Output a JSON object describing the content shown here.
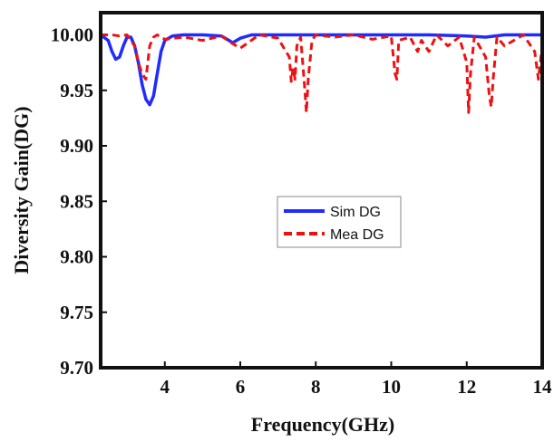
{
  "chart_data": {
    "type": "line",
    "xlabel": "Frequency(GHz)",
    "ylabel": "Diversity Gain(DG)",
    "xlim": [
      2.3,
      14.0
    ],
    "ylim": [
      9.7,
      10.02
    ],
    "xticks": [
      4,
      6,
      8,
      10,
      12,
      14
    ],
    "yticks": [
      9.7,
      9.75,
      9.8,
      9.85,
      9.9,
      9.95,
      10.0
    ],
    "ytick_labels": [
      "9.70",
      "9.75",
      "9.80",
      "9.85",
      "9.90",
      "9.95",
      "10.00"
    ],
    "grid": false,
    "legend_position": "center-right",
    "series": [
      {
        "name": "Sim DG",
        "color": "#1f2bff",
        "style": "solid",
        "x": [
          2.3,
          2.5,
          2.6,
          2.7,
          2.8,
          2.9,
          3.0,
          3.1,
          3.2,
          3.3,
          3.4,
          3.5,
          3.6,
          3.7,
          3.8,
          3.9,
          4.0,
          4.2,
          4.5,
          5.0,
          5.5,
          5.8,
          6.0,
          6.3,
          7.0,
          8.0,
          9.0,
          10.0,
          11.0,
          12.0,
          12.5,
          13.0,
          14.0
        ],
        "y": [
          10.0,
          9.995,
          9.985,
          9.978,
          9.98,
          9.99,
          9.998,
          9.998,
          9.99,
          9.975,
          9.955,
          9.942,
          9.937,
          9.945,
          9.965,
          9.985,
          9.995,
          9.999,
          10.0,
          10.0,
          9.999,
          9.993,
          9.997,
          10.0,
          10.0,
          10.0,
          10.0,
          10.0,
          10.0,
          9.999,
          9.998,
          10.0,
          10.0
        ]
      },
      {
        "name": "Mea DG",
        "color": "#ee1111",
        "style": "dashed",
        "x": [
          2.3,
          2.6,
          2.8,
          3.0,
          3.2,
          3.3,
          3.4,
          3.5,
          3.6,
          3.7,
          3.8,
          4.0,
          4.5,
          5.0,
          5.5,
          5.8,
          6.0,
          6.5,
          7.0,
          7.3,
          7.35,
          7.4,
          7.45,
          7.5,
          7.6,
          7.7,
          7.75,
          7.8,
          7.9,
          8.0,
          8.5,
          9.0,
          9.5,
          10.0,
          10.1,
          10.15,
          10.2,
          10.5,
          10.7,
          10.8,
          11.0,
          11.2,
          11.5,
          11.8,
          12.0,
          12.05,
          12.1,
          12.2,
          12.5,
          12.6,
          12.65,
          12.7,
          12.8,
          13.0,
          13.5,
          13.8,
          13.9,
          14.0
        ],
        "y": [
          10.0,
          10.0,
          9.999,
          10.0,
          9.99,
          9.975,
          9.965,
          9.96,
          9.99,
          9.998,
          10.0,
          9.996,
          9.998,
          9.995,
          9.999,
          9.992,
          9.988,
          10.0,
          9.997,
          9.98,
          9.958,
          9.97,
          9.96,
          9.99,
          9.998,
          9.955,
          9.93,
          9.96,
          9.995,
          10.0,
          9.998,
          10.0,
          9.996,
          9.999,
          9.965,
          9.96,
          9.995,
          9.998,
          9.985,
          9.995,
          9.985,
          10.0,
          9.99,
          9.998,
          9.975,
          9.93,
          9.965,
          9.998,
          9.98,
          9.945,
          9.935,
          9.96,
          9.998,
          9.99,
          10.0,
          9.985,
          9.96,
          9.99
        ]
      }
    ]
  }
}
